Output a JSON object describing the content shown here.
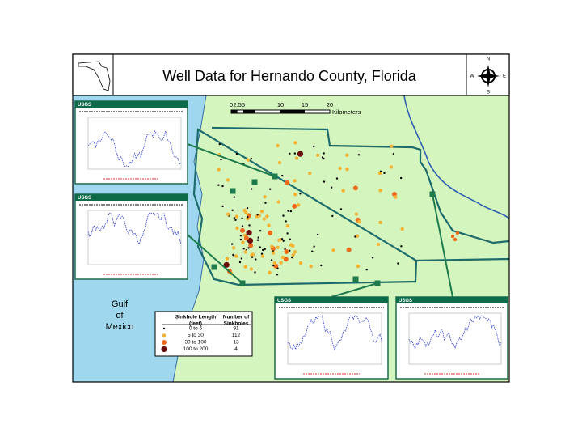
{
  "header": {
    "title": "Well Data for Hernando County, Florida"
  },
  "compass": {
    "north": "N",
    "east": "E",
    "south": "S",
    "west": "W"
  },
  "scale": {
    "ticks": [
      "0",
      "2.5",
      "5",
      "10",
      "15",
      "20"
    ],
    "unit": "Kilometers"
  },
  "gulf_label": [
    "Gulf",
    "of",
    "Mexico"
  ],
  "legend": {
    "headers": [
      [
        "Sinkhole Length",
        "(feet)"
      ],
      [
        "Number of",
        "Sinkholes"
      ]
    ],
    "rows": [
      [
        "0 to 5",
        91
      ],
      [
        "5 to 30",
        112
      ],
      [
        "30 to 100",
        13
      ],
      [
        "100 to 200",
        4
      ]
    ]
  },
  "insets": [
    "USGS",
    "USGS",
    "USGS",
    "USGS"
  ]
}
